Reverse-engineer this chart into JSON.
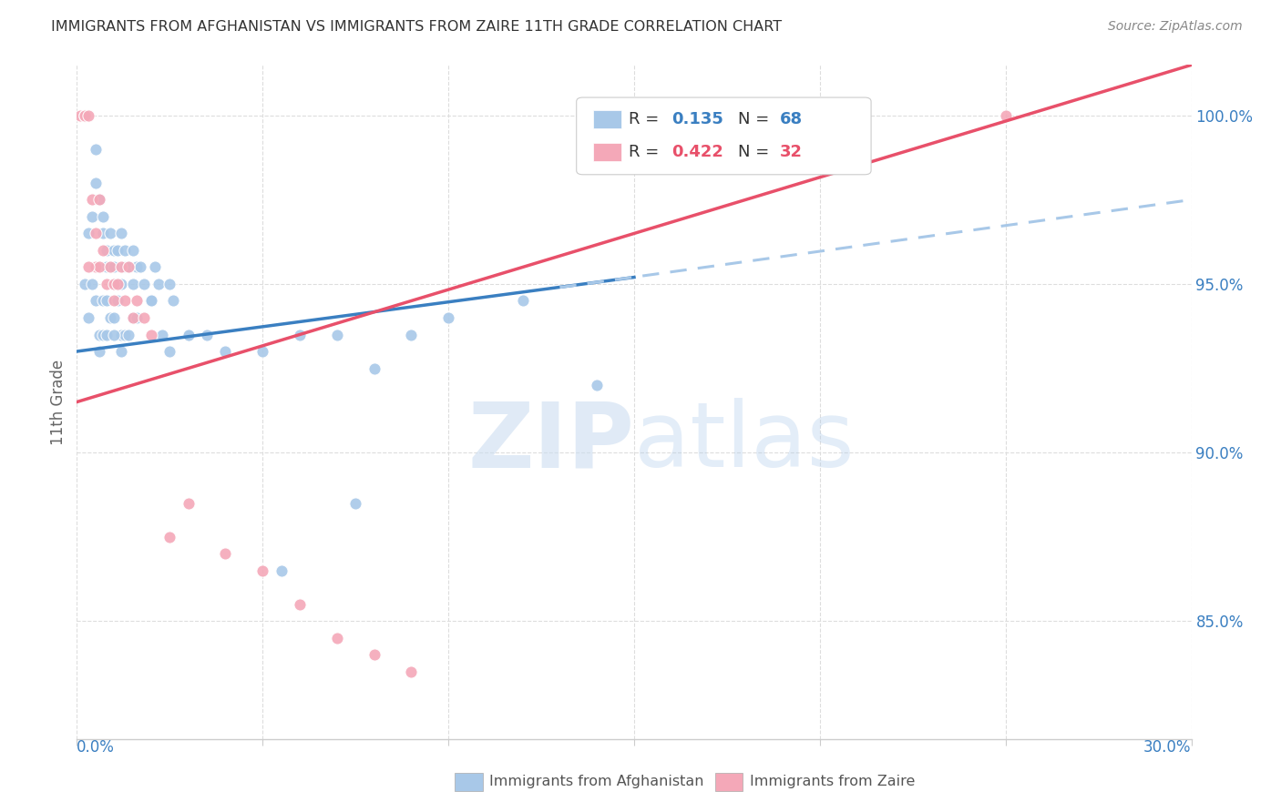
{
  "title": "IMMIGRANTS FROM AFGHANISTAN VS IMMIGRANTS FROM ZAIRE 11TH GRADE CORRELATION CHART",
  "source": "Source: ZipAtlas.com",
  "ylabel": "11th Grade",
  "xlim": [
    0.0,
    30.0
  ],
  "ylim": [
    81.5,
    101.5
  ],
  "yticks": [
    85.0,
    90.0,
    95.0,
    100.0
  ],
  "ytick_labels": [
    "85.0%",
    "90.0%",
    "95.0%",
    "100.0%"
  ],
  "blue_color": "#A8C8E8",
  "pink_color": "#F4A8B8",
  "blue_line_color": "#3A7FC1",
  "pink_line_color": "#E8506A",
  "dashed_line_color": "#A8C8E8",
  "legend_box_color": "#cccccc",
  "axis_color": "#3A7FC1",
  "grid_color": "#dddddd",
  "blue_solid_x0": 0.0,
  "blue_solid_x1": 15.0,
  "blue_solid_y0": 93.0,
  "blue_solid_y1": 95.2,
  "blue_dash_x0": 13.0,
  "blue_dash_x1": 30.0,
  "blue_dash_y0": 94.9,
  "blue_dash_y1": 97.5,
  "pink_x0": 0.0,
  "pink_x1": 30.0,
  "pink_y0": 91.5,
  "pink_y1": 101.5,
  "af_x": [
    0.2,
    0.3,
    0.4,
    0.5,
    0.5,
    0.6,
    0.7,
    0.7,
    0.8,
    0.8,
    0.9,
    0.9,
    1.0,
    1.0,
    1.0,
    1.1,
    1.1,
    1.2,
    1.2,
    1.3,
    1.3,
    1.4,
    1.5,
    1.5,
    1.6,
    1.7,
    1.8,
    2.0,
    2.1,
    2.2,
    2.5,
    2.6,
    3.0,
    3.5,
    4.0,
    5.0,
    6.0,
    7.0,
    8.0,
    9.0,
    10.0,
    12.0,
    14.0,
    0.3,
    0.4,
    0.5,
    0.6,
    0.7,
    0.8,
    0.9,
    1.0,
    1.1,
    1.2,
    1.3,
    1.5,
    1.6,
    2.0,
    2.5,
    3.0,
    0.6,
    0.7,
    0.8,
    1.0,
    1.2,
    1.4,
    2.3,
    5.5,
    7.5
  ],
  "af_y": [
    95.0,
    96.5,
    97.0,
    99.0,
    98.0,
    97.5,
    96.5,
    97.0,
    96.0,
    95.5,
    95.5,
    96.5,
    95.0,
    95.5,
    96.0,
    95.0,
    96.0,
    95.0,
    96.5,
    95.5,
    96.0,
    95.5,
    95.0,
    96.0,
    95.5,
    95.5,
    95.0,
    94.5,
    95.5,
    95.0,
    95.0,
    94.5,
    93.5,
    93.5,
    93.0,
    93.0,
    93.5,
    93.5,
    92.5,
    93.5,
    94.0,
    94.5,
    92.0,
    94.0,
    95.0,
    94.5,
    93.5,
    94.5,
    94.5,
    94.0,
    94.0,
    94.5,
    93.5,
    93.5,
    94.0,
    94.0,
    94.5,
    93.0,
    93.5,
    93.0,
    93.5,
    93.5,
    93.5,
    93.0,
    93.5,
    93.5,
    86.5,
    88.5
  ],
  "za_x": [
    0.1,
    0.2,
    0.2,
    0.3,
    0.4,
    0.5,
    0.5,
    0.6,
    0.7,
    0.8,
    0.9,
    1.0,
    1.0,
    1.1,
    1.2,
    1.3,
    1.4,
    1.5,
    1.6,
    1.8,
    2.0,
    2.5,
    3.0,
    4.0,
    5.0,
    6.0,
    7.0,
    8.0,
    9.0,
    25.0,
    0.3,
    0.6
  ],
  "za_y": [
    100.0,
    100.0,
    100.0,
    100.0,
    97.5,
    96.5,
    95.5,
    95.5,
    96.0,
    95.0,
    95.5,
    94.5,
    95.0,
    95.0,
    95.5,
    94.5,
    95.5,
    94.0,
    94.5,
    94.0,
    93.5,
    87.5,
    88.5,
    87.0,
    86.5,
    85.5,
    84.5,
    84.0,
    83.5,
    100.0,
    95.5,
    97.5
  ]
}
